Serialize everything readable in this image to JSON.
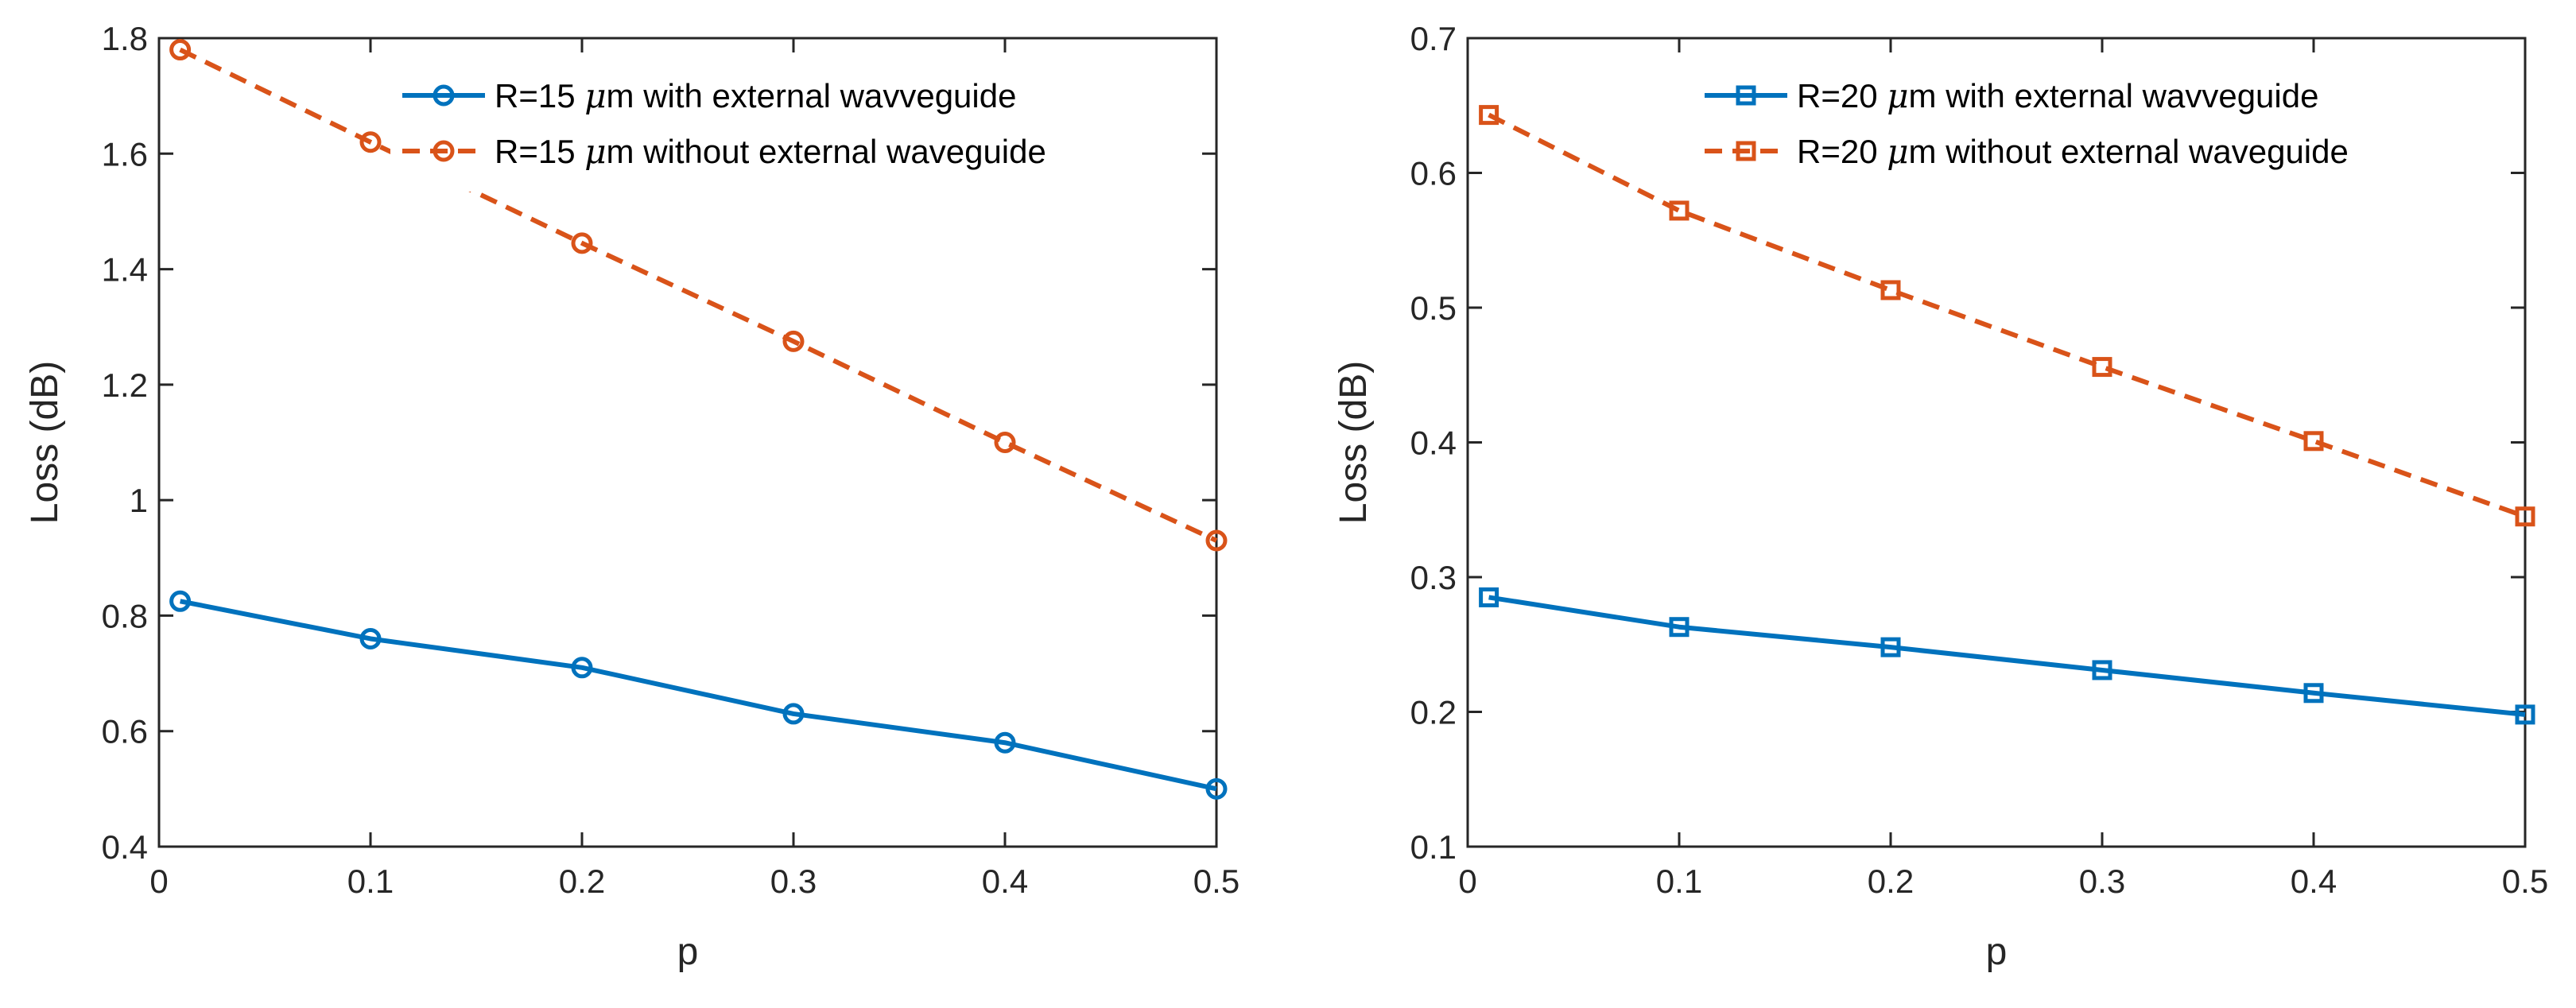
{
  "chart_data": [
    {
      "type": "line",
      "xlabel": "p",
      "ylabel": "Loss (dB)",
      "xlim": [
        0,
        0.5
      ],
      "ylim": [
        0.4,
        1.8
      ],
      "xticks": [
        0,
        0.1,
        0.2,
        0.3,
        0.4,
        0.5
      ],
      "xtick_labels": [
        "0",
        "0.1",
        "0.2",
        "0.3",
        "0.4",
        "0.5"
      ],
      "yticks": [
        0.4,
        0.6,
        0.8,
        1.0,
        1.2,
        1.4,
        1.6,
        1.8
      ],
      "ytick_labels": [
        "0.4",
        "0.6",
        "0.8",
        "1",
        "1.2",
        "1.4",
        "1.6",
        "1.8"
      ],
      "grid": false,
      "legend_position": "top-right",
      "x": [
        0.01,
        0.1,
        0.2,
        0.3,
        0.4,
        0.5
      ],
      "series": [
        {
          "name": "R=15 μm with external wavveguide",
          "legend_prefix": "R=15 ",
          "legend_mu": "μ",
          "legend_suffix": "m with external wavveguide",
          "color": "#0072BD",
          "line_style": "solid",
          "marker": "circle",
          "values": [
            0.825,
            0.76,
            0.71,
            0.63,
            0.58,
            0.5
          ]
        },
        {
          "name": "R=15 μm without external waveguide",
          "legend_prefix": "R=15 ",
          "legend_mu": "μ",
          "legend_suffix": "m without external waveguide",
          "color": "#D95319",
          "line_style": "dashed",
          "marker": "circle",
          "values": [
            1.78,
            1.62,
            1.445,
            1.275,
            1.1,
            0.93
          ]
        }
      ]
    },
    {
      "type": "line",
      "xlabel": "p",
      "ylabel": "Loss (dB)",
      "xlim": [
        0,
        0.5
      ],
      "ylim": [
        0.1,
        0.7
      ],
      "xticks": [
        0,
        0.1,
        0.2,
        0.3,
        0.4,
        0.5
      ],
      "xtick_labels": [
        "0",
        "0.1",
        "0.2",
        "0.3",
        "0.4",
        "0.5"
      ],
      "yticks": [
        0.1,
        0.2,
        0.3,
        0.4,
        0.5,
        0.6,
        0.7
      ],
      "ytick_labels": [
        "0.1",
        "0.2",
        "0.3",
        "0.4",
        "0.5",
        "0.6",
        "0.7"
      ],
      "grid": false,
      "legend_position": "top-right",
      "x": [
        0.01,
        0.1,
        0.2,
        0.3,
        0.4,
        0.5
      ],
      "series": [
        {
          "name": "R=20 μm with external wavveguide",
          "legend_prefix": "R=20 ",
          "legend_mu": "μ",
          "legend_suffix": "m with external wavveguide",
          "color": "#0072BD",
          "line_style": "solid",
          "marker": "square",
          "values": [
            0.285,
            0.263,
            0.248,
            0.231,
            0.214,
            0.198
          ]
        },
        {
          "name": "R=20 μm without external waveguide",
          "legend_prefix": "R=20 ",
          "legend_mu": "μ",
          "legend_suffix": "m without external waveguide",
          "color": "#D95319",
          "line_style": "dashed",
          "marker": "square",
          "values": [
            0.643,
            0.572,
            0.513,
            0.456,
            0.401,
            0.345
          ]
        }
      ]
    }
  ]
}
